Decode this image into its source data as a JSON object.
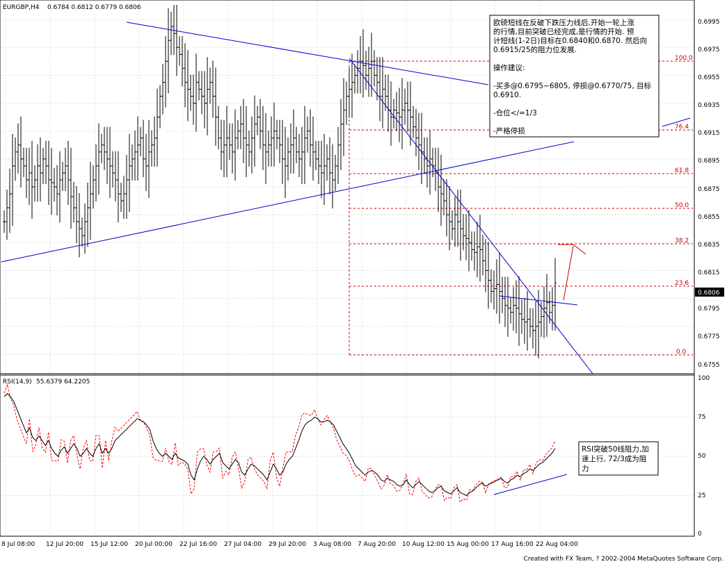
{
  "header": {
    "symbol": "EURGBP,H4",
    "ohlc": "0.6784 0.6812 0.6779 0.6806"
  },
  "price_axis": {
    "ticks": [
      "0.6995",
      "0.6975",
      "0.6955",
      "0.6935",
      "0.6915",
      "0.6895",
      "0.6875",
      "0.6855",
      "0.6835",
      "0.6815",
      "0.6795",
      "0.6775",
      "0.6755"
    ],
    "current_price": "0.6806"
  },
  "rsi": {
    "header": "RSI(14,9)",
    "values": "55.6379  64.2205",
    "ticks": [
      "100",
      "75",
      "50",
      "25",
      "0"
    ]
  },
  "time_axis": {
    "labels": [
      "8 Jul 08:00",
      "12 Jul 20:00",
      "15 Jul 12:00",
      "20 Jul 00:00",
      "22 Jul 16:00",
      "27 Jul 04:00",
      "29 Jul 20:00",
      "3 Aug 08:00",
      "7 Aug 20:00",
      "10 Aug 12:00",
      "15 Aug 00:00",
      "17 Aug 16:00",
      "22 Aug 04:00"
    ]
  },
  "fibonacci": {
    "levels": [
      "100.0",
      "76.4",
      "61.8",
      "50.0",
      "38.2",
      "23.6",
      "0.0"
    ]
  },
  "annotation_main": {
    "lines": [
      "欧磅短线在反破下跌压力线后,开始一轮上涨",
      "的行情,目前突破已经完成,是行情的开始. 预",
      "计短线(1-2日)目标在0.6840和0.6870. 然后向",
      "0.6915/25的阻力位发展.",
      "",
      "操作建议:",
      "",
      "-买多@0.6795~6805, 停损@0.6770/75, 目标",
      "0.6910.",
      "",
      "-仓位</=1/3",
      "",
      "-严格停损"
    ]
  },
  "annotation_rsi": {
    "lines": [
      "RSI突破50线阻力,加",
      "速上行, 72/3成为阻",
      "力"
    ]
  },
  "footer": "Created with FX Team, ? 2002-2004 MetaQuotes Software Corp.",
  "colors": {
    "candle": "#000000",
    "trendline": "#0000cc",
    "fib": "#cc0000",
    "rsi_main": "#000000",
    "rsi_signal": "#ff0000",
    "grid": "#c8c8c8"
  },
  "chart_data": {
    "type": "line",
    "close_series": [
      0.685,
      0.686,
      0.687,
      0.689,
      0.69,
      0.6905,
      0.6895,
      0.689,
      0.688,
      0.6885,
      0.6875,
      0.688,
      0.689,
      0.6885,
      0.6895,
      0.689,
      0.688,
      0.6878,
      0.6875,
      0.687,
      0.688,
      0.6885,
      0.689,
      0.688,
      0.6868,
      0.686,
      0.685,
      0.6845,
      0.684,
      0.685,
      0.686,
      0.687,
      0.688,
      0.689,
      0.69,
      0.6905,
      0.69,
      0.6895,
      0.689,
      0.6885,
      0.688,
      0.687,
      0.6865,
      0.687,
      0.688,
      0.689,
      0.6895,
      0.69,
      0.6905,
      0.691,
      0.6895,
      0.689,
      0.69,
      0.6905,
      0.691,
      0.6925,
      0.694,
      0.695,
      0.6965,
      0.698,
      0.699,
      0.6985,
      0.6975,
      0.697,
      0.696,
      0.695,
      0.6945,
      0.694,
      0.6935,
      0.695,
      0.6945,
      0.694,
      0.6935,
      0.6945,
      0.695,
      0.694,
      0.6925,
      0.691,
      0.69,
      0.6905,
      0.691,
      0.6905,
      0.69,
      0.691,
      0.6915,
      0.692,
      0.691,
      0.6905,
      0.69,
      0.691,
      0.692,
      0.6925,
      0.6915,
      0.6905,
      0.69,
      0.6905,
      0.691,
      0.6915,
      0.691,
      0.6905,
      0.6895,
      0.689,
      0.69,
      0.6905,
      0.691,
      0.69,
      0.6895,
      0.69,
      0.691,
      0.6915,
      0.6905,
      0.69,
      0.6895,
      0.689,
      0.6885,
      0.689,
      0.6895,
      0.6885,
      0.688,
      0.689,
      0.6905,
      0.692,
      0.693,
      0.694,
      0.6945,
      0.695,
      0.6955,
      0.696,
      0.6965,
      0.6962,
      0.6955,
      0.696,
      0.6965,
      0.6955,
      0.695,
      0.694,
      0.6945,
      0.694,
      0.693,
      0.6925,
      0.693,
      0.6928,
      0.6925,
      0.693,
      0.6935,
      0.693,
      0.6925,
      0.6918,
      0.691,
      0.6905,
      0.69,
      0.6895,
      0.689,
      0.6895,
      0.689,
      0.6885,
      0.6875,
      0.687,
      0.6865,
      0.6855,
      0.685,
      0.6845,
      0.6855,
      0.685,
      0.6845,
      0.684,
      0.6838,
      0.6835,
      0.683,
      0.6828,
      0.6832,
      0.683,
      0.6822,
      0.6815,
      0.6808,
      0.68,
      0.6802,
      0.6805,
      0.68,
      0.6795,
      0.679,
      0.6788,
      0.6785,
      0.679,
      0.6788,
      0.6784,
      0.678,
      0.6778,
      0.678,
      0.6775,
      0.6772,
      0.6775,
      0.6778,
      0.6782,
      0.6788,
      0.6792,
      0.6785,
      0.679,
      0.6806
    ],
    "rsi_series": [
      88,
      90,
      88,
      85,
      80,
      75,
      70,
      65,
      68,
      62,
      60,
      63,
      60,
      57,
      60,
      55,
      52,
      50,
      54,
      56,
      52,
      55,
      58,
      55,
      50,
      52,
      55,
      52,
      50,
      55,
      58,
      52,
      55,
      52,
      55,
      60,
      62,
      64,
      66,
      68,
      70,
      72,
      74,
      73,
      72,
      70,
      67,
      60,
      55,
      52,
      50,
      52,
      50,
      48,
      52,
      49,
      48,
      47,
      45,
      38,
      35,
      42,
      47,
      50,
      48,
      45,
      48,
      50,
      52,
      46,
      44,
      42,
      45,
      48,
      46,
      40,
      38,
      42,
      45,
      44,
      42,
      40,
      38,
      35,
      40,
      45,
      42,
      38,
      40,
      45,
      48,
      50,
      55,
      60,
      66,
      70,
      72,
      73,
      75,
      74,
      72,
      72,
      73,
      72,
      70,
      66,
      62,
      58,
      55,
      52,
      48,
      44,
      42,
      40,
      38,
      40,
      41,
      40,
      38,
      35,
      34,
      36,
      35,
      34,
      32,
      31,
      32,
      35,
      32,
      30,
      32,
      34,
      32,
      30,
      28,
      27,
      28,
      30,
      31,
      28,
      27,
      26,
      28,
      30,
      27,
      26,
      25,
      27,
      28,
      30,
      32,
      33,
      31,
      32,
      33,
      34,
      35,
      36,
      34,
      33,
      35,
      36,
      38,
      37,
      39,
      40,
      42,
      41,
      43,
      45,
      46,
      48,
      50,
      52,
      55
    ],
    "ylim": [
      0.6745,
      0.7005
    ],
    "rsi_ylim": [
      0,
      100
    ]
  }
}
